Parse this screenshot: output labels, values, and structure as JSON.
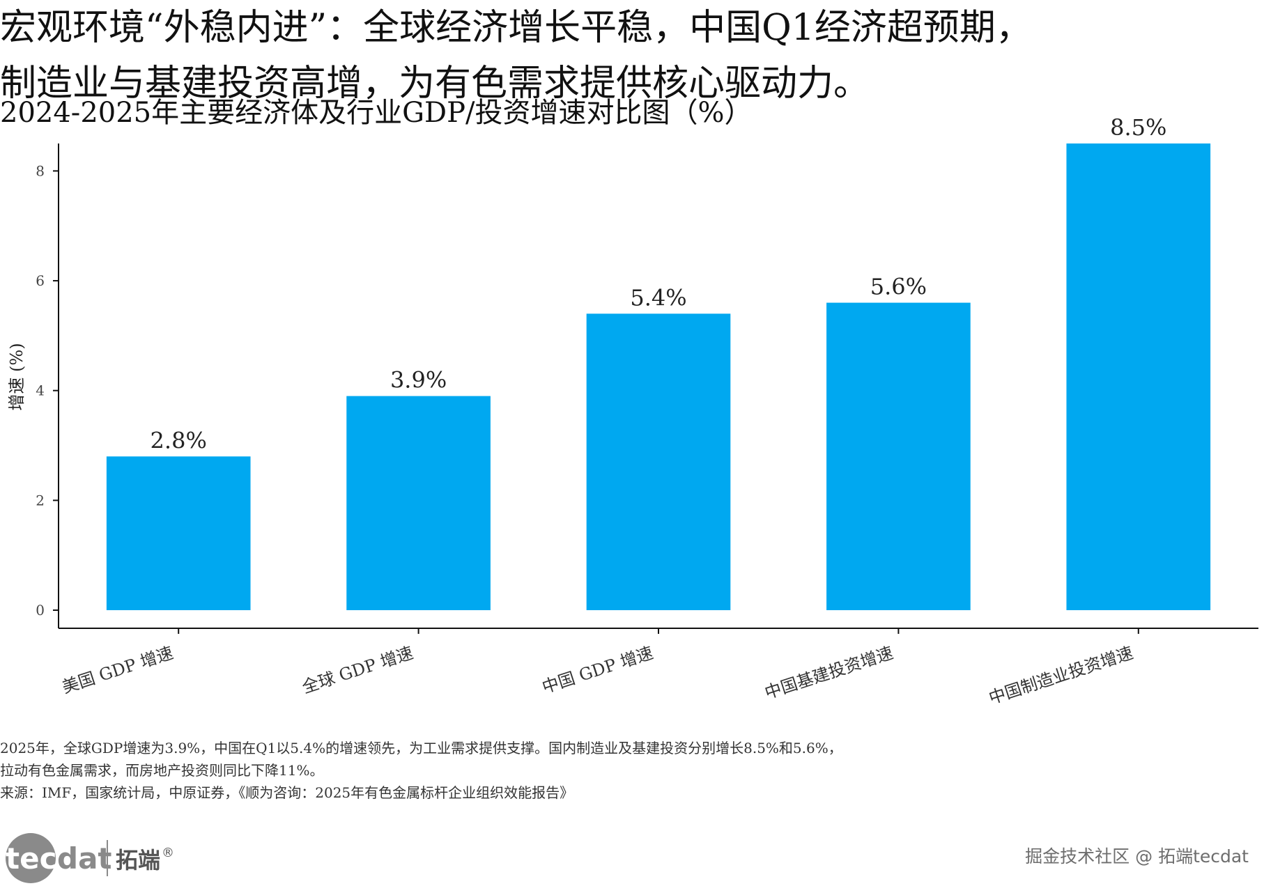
{
  "headline": {
    "line1": "宏观环境“外稳内进”：全球经济增长平稳，中国Q1经济超预期，",
    "line2": "制造业与基建投资高增，为有色需求提供核心驱动力。"
  },
  "chart_data": {
    "type": "bar",
    "title": "2024-2025年主要经济体及行业GDP/投资增速对比图（%）",
    "xlabel": "",
    "ylabel": "增速 (%)",
    "categories": [
      "美国 GDP 增速",
      "全球 GDP 增速",
      "中国 GDP 增速",
      "中国基建投资增速",
      "中国制造业投资增速"
    ],
    "values": [
      2.8,
      3.9,
      5.4,
      5.6,
      8.5
    ],
    "data_labels": [
      "2.8%",
      "3.9%",
      "5.4%",
      "5.6%",
      "8.5%"
    ],
    "ylim": [
      0,
      8.5
    ],
    "yticks": [
      0,
      2,
      4,
      6,
      8
    ],
    "grid": false,
    "bar_color": "#00a8f0",
    "axis_color": "#111111"
  },
  "notes": {
    "line1": "2025年，全球GDP增速为3.9%，中国在Q1以5.4%的增速领先，为工业需求提供支撑。国内制造业及基建投资分别增长8.5%和5.6%，",
    "line2": "拉动有色金属需求，而房地产投资则同比下降11%。",
    "source": "来源：IMF，国家统计局，中原证券，《顺为咨询：2025年有色金属标杆企业组织效能报告》"
  },
  "branding": {
    "logo_text": "tecdat",
    "logo_cn": "拓端",
    "registered": "®",
    "watermark": "掘金技术社区 @ 拓端tecdat"
  }
}
